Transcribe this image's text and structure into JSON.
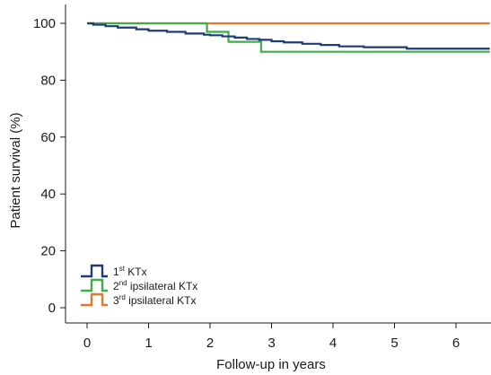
{
  "chart_data": {
    "type": "line",
    "step": true,
    "xlabel": "Follow-up in years",
    "ylabel": "Patient survival (%)",
    "xlim": [
      -0.35,
      6.55
    ],
    "ylim": [
      -3,
      105
    ],
    "x_ticks": [
      0,
      1,
      2,
      3,
      4,
      5,
      6
    ],
    "y_ticks": [
      0,
      20,
      40,
      60,
      80,
      100
    ],
    "legend_position": "bottom-left",
    "series": [
      {
        "name": "1st KTx",
        "legend": {
          "base": "1",
          "sup": "st",
          "rest": " KTx"
        },
        "color": "#1f3a7a",
        "x": [
          0,
          0.1,
          0.3,
          0.5,
          0.8,
          1.0,
          1.3,
          1.6,
          1.9,
          2.0,
          2.2,
          2.4,
          2.6,
          2.8,
          3.0,
          3.2,
          3.5,
          3.8,
          4.1,
          4.5,
          4.9,
          5.2,
          5.5,
          6.0,
          6.55
        ],
        "y": [
          100,
          99.5,
          99.0,
          98.5,
          97.9,
          97.4,
          97.0,
          96.4,
          96.0,
          95.8,
          95.4,
          95.0,
          94.5,
          94.2,
          93.7,
          93.3,
          92.8,
          92.4,
          91.9,
          91.6,
          91.6,
          91.1,
          91.1,
          91.1,
          91.1
        ]
      },
      {
        "name": "2nd ipsilateral KTx",
        "legend": {
          "base": "2",
          "sup": "nd",
          "rest": " ipsilateral KTx"
        },
        "color": "#3fae49",
        "x": [
          0,
          1.95,
          1.95,
          2.3,
          2.3,
          2.83,
          2.83,
          6.55
        ],
        "y": [
          100,
          100,
          97.0,
          97.0,
          93.5,
          93.5,
          90.0,
          90.0
        ]
      },
      {
        "name": "3rd ipsilateral KTx",
        "legend": {
          "base": "3",
          "sup": "rd",
          "rest": " ipsilateral KTx"
        },
        "color": "#e07a2e",
        "x": [
          0,
          6.55
        ],
        "y": [
          100,
          100
        ]
      }
    ]
  }
}
